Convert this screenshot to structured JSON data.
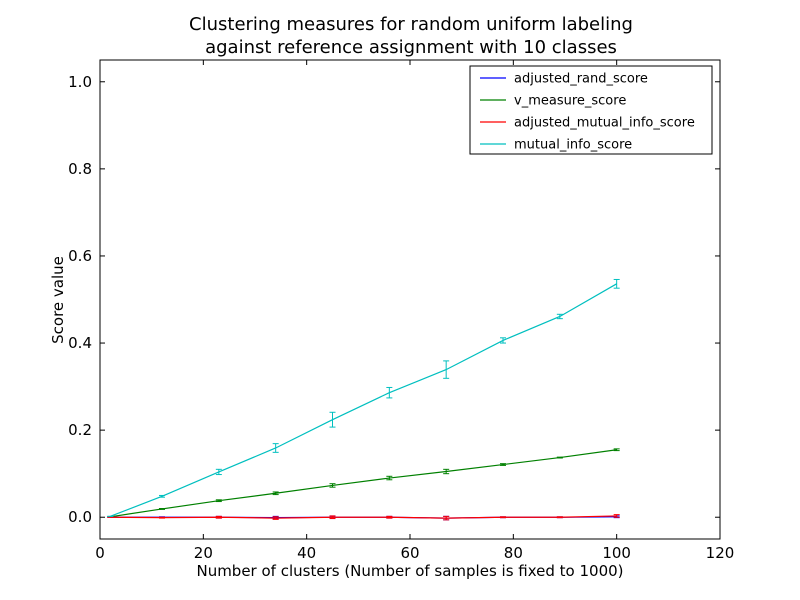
{
  "chart_data": {
    "type": "line",
    "title": "Clustering measures for random uniform labeling",
    "subtitle": "against reference assignment with 10 classes",
    "xlabel": "Number of clusters (Number of samples is fixed to 1000)",
    "ylabel": "Score value",
    "xlim": [
      0,
      120
    ],
    "ylim": [
      -0.05,
      1.05
    ],
    "xticks": [
      0,
      20,
      40,
      60,
      80,
      100,
      120
    ],
    "yticks": [
      0.0,
      0.2,
      0.4,
      0.6,
      0.8,
      1.0
    ],
    "xtick_labels": [
      "0",
      "20",
      "40",
      "60",
      "80",
      "100",
      "120"
    ],
    "ytick_labels": [
      "0.0",
      "0.2",
      "0.4",
      "0.6",
      "0.8",
      "1.0"
    ],
    "grid": false,
    "legend_position": "top-right",
    "x": [
      2,
      12,
      23,
      34,
      45,
      56,
      67,
      78,
      89,
      100
    ],
    "series": [
      {
        "name": "adjusted_rand_score",
        "color": "#0000ff",
        "values": [
          0.0,
          0.0,
          0.0,
          -0.001,
          0.0,
          0.0,
          -0.002,
          0.0,
          0.0,
          0.001
        ],
        "errors": [
          0.0,
          0.001,
          0.002,
          0.003,
          0.003,
          0.002,
          0.004,
          0.001,
          0.001,
          0.002
        ]
      },
      {
        "name": "v_measure_score",
        "color": "#008000",
        "values": [
          0.001,
          0.019,
          0.038,
          0.055,
          0.073,
          0.09,
          0.105,
          0.121,
          0.137,
          0.155
        ],
        "errors": [
          0.0,
          0.001,
          0.002,
          0.003,
          0.004,
          0.004,
          0.005,
          0.002,
          0.001,
          0.002
        ]
      },
      {
        "name": "adjusted_mutual_info_score",
        "color": "#ff0000",
        "values": [
          0.0,
          -0.001,
          0.0,
          -0.002,
          0.0,
          0.0,
          -0.002,
          0.0,
          0.0,
          0.003
        ],
        "errors": [
          0.0,
          0.001,
          0.002,
          0.003,
          0.003,
          0.002,
          0.004,
          0.001,
          0.001,
          0.003
        ]
      },
      {
        "name": "mutual_info_score",
        "color": "#00bfbf",
        "values": [
          0.002,
          0.048,
          0.104,
          0.159,
          0.224,
          0.286,
          0.339,
          0.406,
          0.461,
          0.536
        ],
        "errors": [
          0.0,
          0.002,
          0.006,
          0.01,
          0.017,
          0.012,
          0.02,
          0.006,
          0.005,
          0.01
        ]
      }
    ]
  }
}
